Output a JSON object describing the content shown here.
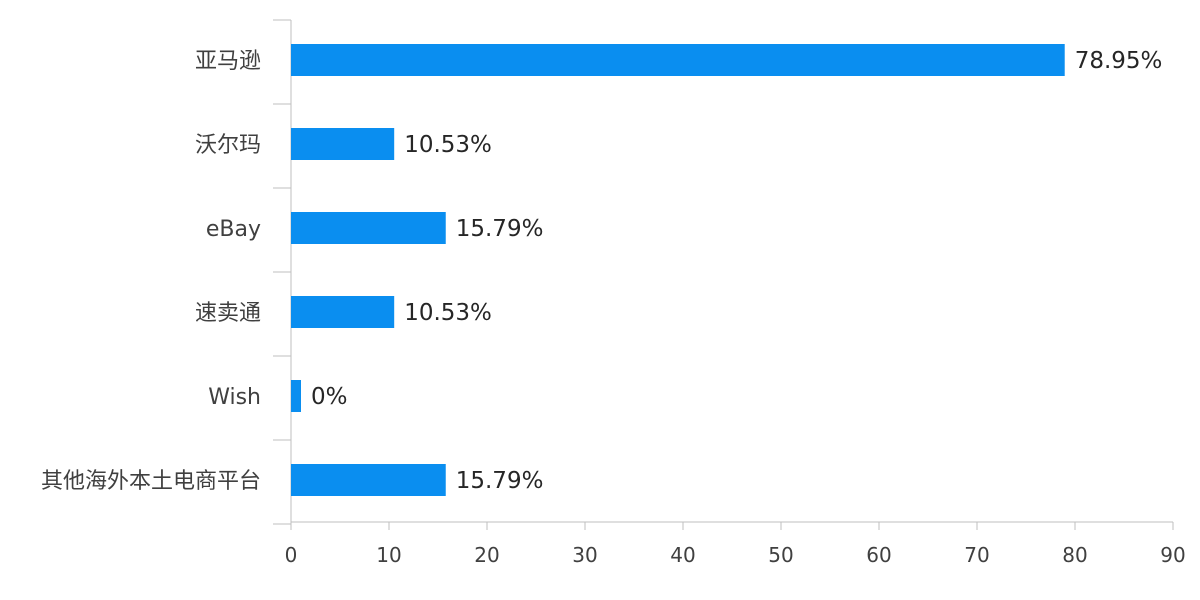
{
  "chart_data": {
    "type": "bar",
    "orientation": "horizontal",
    "title": "",
    "xlabel": "",
    "ylabel": "",
    "categories": [
      "亚马逊",
      "沃尔玛",
      "eBay",
      "速卖通",
      "Wish",
      "其他海外本土电商平台"
    ],
    "values": [
      78.95,
      10.53,
      15.79,
      10.53,
      0,
      15.79
    ],
    "value_labels": [
      "78.95%",
      "10.53%",
      "15.79%",
      "10.53%",
      "0%",
      "15.79%"
    ],
    "xlim": [
      0,
      90
    ],
    "xticks": [
      0,
      10,
      20,
      30,
      40,
      50,
      60,
      70,
      80,
      90
    ],
    "grid": false,
    "legend": "none",
    "colors": {
      "bar": "#0A8EF0",
      "axis": "#BFBFBF"
    }
  }
}
